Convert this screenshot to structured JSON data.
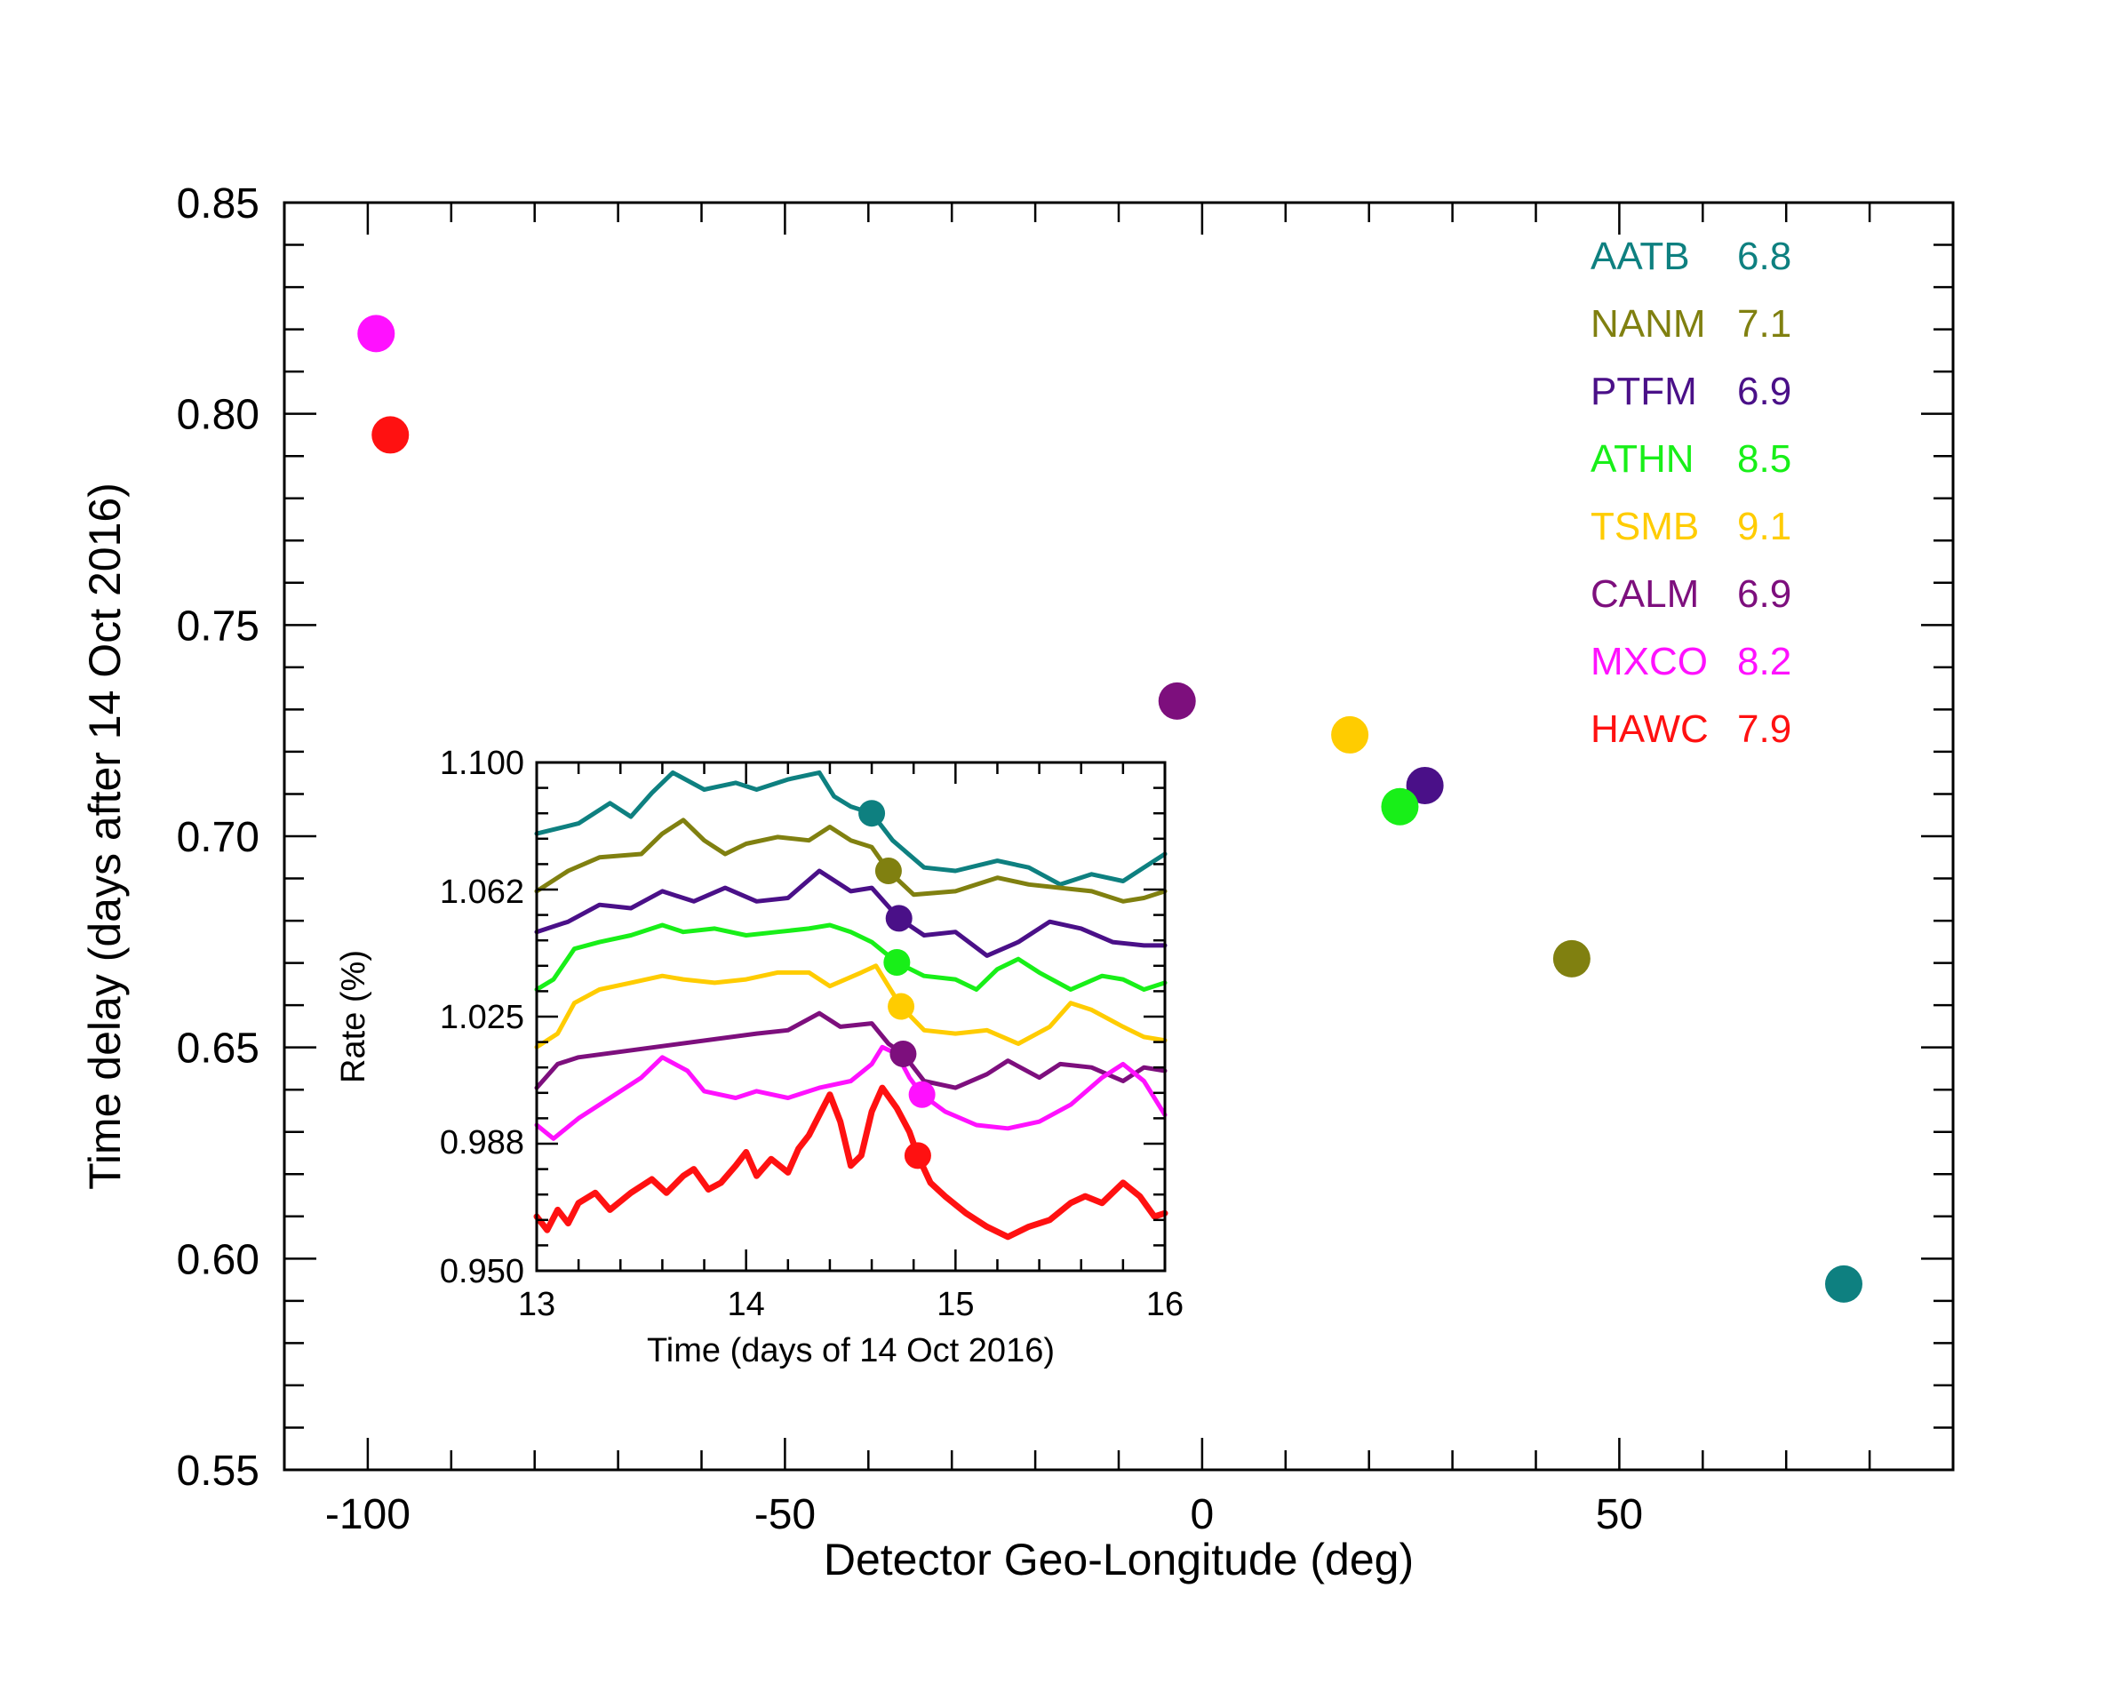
{
  "chart_data": [
    {
      "type": "scatter",
      "title": "",
      "xlabel": "Detector Geo-Longitude (deg)",
      "ylabel": "Time delay (days after 14 Oct 2016)",
      "xlim": [
        -110,
        90
      ],
      "ylim": [
        0.55,
        0.85
      ],
      "xticks": [
        -100,
        -50,
        0,
        50
      ],
      "xtick_labels": [
        "-100",
        "-50",
        "0",
        "50"
      ],
      "yticks": [
        0.55,
        0.6,
        0.65,
        0.7,
        0.75,
        0.8,
        0.85
      ],
      "ytick_labels": [
        "0.55",
        "0.60",
        "0.65",
        "0.70",
        "0.75",
        "0.80",
        "0.85"
      ],
      "grid": false,
      "legend_position": "top-right",
      "series": [
        {
          "name": "AATB",
          "value": "6.8",
          "color": "#0e8080",
          "x": 76.9,
          "y": 0.594
        },
        {
          "name": "NANM",
          "value": "7.1",
          "color": "#808010",
          "x": 44.3,
          "y": 0.671
        },
        {
          "name": "PTFM",
          "value": "6.9",
          "color": "#4a1088",
          "x": 26.7,
          "y": 0.712
        },
        {
          "name": "ATHN",
          "value": "8.5",
          "color": "#18ef18",
          "x": 23.7,
          "y": 0.707
        },
        {
          "name": "TSMB",
          "value": "9.1",
          "color": "#ffcc00",
          "x": 17.7,
          "y": 0.724
        },
        {
          "name": "CALM",
          "value": "6.9",
          "color": "#7d0f7d",
          "x": -3.0,
          "y": 0.732
        },
        {
          "name": "MXCO",
          "value": "8.2",
          "color": "#ff11ff",
          "x": -99.0,
          "y": 0.819
        },
        {
          "name": "HAWC",
          "value": "7.9",
          "color": "#ff1111",
          "x": -97.3,
          "y": 0.795
        }
      ]
    },
    {
      "type": "line",
      "title": "",
      "xlabel": "Time (days of 14 Oct 2016)",
      "ylabel": "Rate (%)",
      "xlim": [
        13,
        16
      ],
      "ylim": [
        0.95,
        1.1
      ],
      "xticks": [
        13,
        14,
        15,
        16
      ],
      "xtick_labels": [
        "13",
        "14",
        "15",
        "16"
      ],
      "yticks": [
        0.95,
        0.988,
        1.025,
        1.062,
        1.1
      ],
      "ytick_labels": [
        "0.950",
        "0.988",
        "1.025",
        "1.062",
        "1.100"
      ],
      "series": [
        {
          "name": "AATB",
          "color": "#0e8080",
          "width": 5,
          "marker": [
            14.6,
            1.085
          ],
          "points": [
            [
              13.0,
              1.079
            ],
            [
              13.2,
              1.082
            ],
            [
              13.35,
              1.088
            ],
            [
              13.45,
              1.084
            ],
            [
              13.55,
              1.091
            ],
            [
              13.65,
              1.097
            ],
            [
              13.8,
              1.092
            ],
            [
              13.95,
              1.094
            ],
            [
              14.05,
              1.092
            ],
            [
              14.2,
              1.095
            ],
            [
              14.35,
              1.097
            ],
            [
              14.42,
              1.09
            ],
            [
              14.5,
              1.087
            ],
            [
              14.6,
              1.085
            ],
            [
              14.7,
              1.077
            ],
            [
              14.85,
              1.069
            ],
            [
              15.0,
              1.068
            ],
            [
              15.2,
              1.071
            ],
            [
              15.35,
              1.069
            ],
            [
              15.5,
              1.064
            ],
            [
              15.65,
              1.067
            ],
            [
              15.8,
              1.065
            ],
            [
              15.9,
              1.069
            ],
            [
              16.0,
              1.073
            ]
          ]
        },
        {
          "name": "NANM",
          "color": "#808010",
          "width": 5,
          "marker": [
            14.68,
            1.068
          ],
          "points": [
            [
              13.0,
              1.062
            ],
            [
              13.15,
              1.068
            ],
            [
              13.3,
              1.072
            ],
            [
              13.5,
              1.073
            ],
            [
              13.6,
              1.079
            ],
            [
              13.7,
              1.083
            ],
            [
              13.8,
              1.077
            ],
            [
              13.9,
              1.073
            ],
            [
              14.0,
              1.076
            ],
            [
              14.15,
              1.078
            ],
            [
              14.3,
              1.077
            ],
            [
              14.4,
              1.081
            ],
            [
              14.5,
              1.077
            ],
            [
              14.6,
              1.075
            ],
            [
              14.68,
              1.068
            ],
            [
              14.8,
              1.061
            ],
            [
              15.0,
              1.062
            ],
            [
              15.2,
              1.066
            ],
            [
              15.35,
              1.064
            ],
            [
              15.5,
              1.063
            ],
            [
              15.65,
              1.062
            ],
            [
              15.8,
              1.059
            ],
            [
              15.9,
              1.06
            ],
            [
              16.0,
              1.062
            ]
          ]
        },
        {
          "name": "PTFM",
          "color": "#4a1088",
          "width": 5,
          "marker": [
            14.73,
            1.054
          ],
          "points": [
            [
              13.0,
              1.05
            ],
            [
              13.15,
              1.053
            ],
            [
              13.3,
              1.058
            ],
            [
              13.45,
              1.057
            ],
            [
              13.6,
              1.062
            ],
            [
              13.75,
              1.059
            ],
            [
              13.9,
              1.063
            ],
            [
              14.05,
              1.059
            ],
            [
              14.2,
              1.06
            ],
            [
              14.35,
              1.068
            ],
            [
              14.5,
              1.062
            ],
            [
              14.6,
              1.063
            ],
            [
              14.73,
              1.054
            ],
            [
              14.85,
              1.049
            ],
            [
              15.0,
              1.05
            ],
            [
              15.15,
              1.043
            ],
            [
              15.3,
              1.047
            ],
            [
              15.45,
              1.053
            ],
            [
              15.6,
              1.051
            ],
            [
              15.75,
              1.047
            ],
            [
              15.9,
              1.046
            ],
            [
              16.0,
              1.046
            ]
          ]
        },
        {
          "name": "ATHN",
          "color": "#18ef18",
          "width": 5,
          "marker": [
            14.72,
            1.041
          ],
          "points": [
            [
              13.0,
              1.033
            ],
            [
              13.08,
              1.036
            ],
            [
              13.18,
              1.045
            ],
            [
              13.3,
              1.047
            ],
            [
              13.45,
              1.049
            ],
            [
              13.6,
              1.052
            ],
            [
              13.7,
              1.05
            ],
            [
              13.85,
              1.051
            ],
            [
              14.0,
              1.049
            ],
            [
              14.15,
              1.05
            ],
            [
              14.3,
              1.051
            ],
            [
              14.4,
              1.052
            ],
            [
              14.5,
              1.05
            ],
            [
              14.6,
              1.047
            ],
            [
              14.72,
              1.041
            ],
            [
              14.85,
              1.037
            ],
            [
              15.0,
              1.036
            ],
            [
              15.1,
              1.033
            ],
            [
              15.2,
              1.039
            ],
            [
              15.3,
              1.042
            ],
            [
              15.4,
              1.038
            ],
            [
              15.55,
              1.033
            ],
            [
              15.7,
              1.037
            ],
            [
              15.8,
              1.036
            ],
            [
              15.9,
              1.033
            ],
            [
              16.0,
              1.035
            ]
          ]
        },
        {
          "name": "TSMB",
          "color": "#ffcc00",
          "width": 5,
          "marker": [
            14.74,
            1.028
          ],
          "points": [
            [
              13.0,
              1.016
            ],
            [
              13.1,
              1.02
            ],
            [
              13.18,
              1.029
            ],
            [
              13.3,
              1.033
            ],
            [
              13.45,
              1.035
            ],
            [
              13.6,
              1.037
            ],
            [
              13.7,
              1.036
            ],
            [
              13.85,
              1.035
            ],
            [
              14.0,
              1.036
            ],
            [
              14.15,
              1.038
            ],
            [
              14.3,
              1.038
            ],
            [
              14.4,
              1.034
            ],
            [
              14.55,
              1.038
            ],
            [
              14.62,
              1.04
            ],
            [
              14.68,
              1.034
            ],
            [
              14.74,
              1.028
            ],
            [
              14.85,
              1.021
            ],
            [
              15.0,
              1.02
            ],
            [
              15.15,
              1.021
            ],
            [
              15.3,
              1.017
            ],
            [
              15.45,
              1.022
            ],
            [
              15.55,
              1.029
            ],
            [
              15.65,
              1.027
            ],
            [
              15.8,
              1.022
            ],
            [
              15.9,
              1.019
            ],
            [
              16.0,
              1.018
            ]
          ]
        },
        {
          "name": "CALM",
          "color": "#7d0f7d",
          "width": 5,
          "marker": [
            14.75,
            1.014
          ],
          "points": [
            [
              13.0,
              1.004
            ],
            [
              13.1,
              1.011
            ],
            [
              13.2,
              1.013
            ],
            [
              14.05,
              1.02
            ],
            [
              14.2,
              1.021
            ],
            [
              14.35,
              1.026
            ],
            [
              14.45,
              1.022
            ],
            [
              14.6,
              1.023
            ],
            [
              14.68,
              1.017
            ],
            [
              14.75,
              1.014
            ],
            [
              14.85,
              1.006
            ],
            [
              15.0,
              1.004
            ],
            [
              15.15,
              1.008
            ],
            [
              15.25,
              1.012
            ],
            [
              15.4,
              1.007
            ],
            [
              15.5,
              1.011
            ],
            [
              15.65,
              1.01
            ],
            [
              15.8,
              1.006
            ],
            [
              15.9,
              1.01
            ],
            [
              16.0,
              1.009
            ]
          ]
        },
        {
          "name": "MXCO",
          "color": "#ff11ff",
          "width": 5,
          "marker": [
            14.84,
            1.002
          ],
          "points": [
            [
              13.0,
              0.993
            ],
            [
              13.08,
              0.989
            ],
            [
              13.2,
              0.995
            ],
            [
              13.35,
              1.001
            ],
            [
              13.5,
              1.007
            ],
            [
              13.6,
              1.013
            ],
            [
              13.72,
              1.009
            ],
            [
              13.8,
              1.003
            ],
            [
              13.95,
              1.001
            ],
            [
              14.05,
              1.003
            ],
            [
              14.2,
              1.001
            ],
            [
              14.35,
              1.004
            ],
            [
              14.5,
              1.006
            ],
            [
              14.6,
              1.011
            ],
            [
              14.65,
              1.016
            ],
            [
              14.72,
              1.014
            ],
            [
              14.78,
              1.007
            ],
            [
              14.84,
              1.002
            ],
            [
              14.95,
              0.997
            ],
            [
              15.1,
              0.993
            ],
            [
              15.25,
              0.992
            ],
            [
              15.4,
              0.994
            ],
            [
              15.55,
              0.999
            ],
            [
              15.7,
              1.007
            ],
            [
              15.8,
              1.011
            ],
            [
              15.9,
              1.006
            ],
            [
              16.0,
              0.996
            ]
          ]
        },
        {
          "name": "HAWC",
          "color": "#ff1111",
          "width": 7,
          "marker": [
            14.82,
            0.984
          ],
          "points": [
            [
              13.0,
              0.966
            ],
            [
              13.05,
              0.962
            ],
            [
              13.1,
              0.968
            ],
            [
              13.15,
              0.964
            ],
            [
              13.2,
              0.97
            ],
            [
              13.28,
              0.973
            ],
            [
              13.35,
              0.968
            ],
            [
              13.45,
              0.973
            ],
            [
              13.55,
              0.977
            ],
            [
              13.62,
              0.973
            ],
            [
              13.7,
              0.978
            ],
            [
              13.75,
              0.98
            ],
            [
              13.82,
              0.974
            ],
            [
              13.88,
              0.976
            ],
            [
              13.95,
              0.981
            ],
            [
              14.0,
              0.985
            ],
            [
              14.05,
              0.978
            ],
            [
              14.12,
              0.983
            ],
            [
              14.2,
              0.979
            ],
            [
              14.25,
              0.986
            ],
            [
              14.3,
              0.99
            ],
            [
              14.35,
              0.996
            ],
            [
              14.4,
              1.002
            ],
            [
              14.45,
              0.994
            ],
            [
              14.5,
              0.981
            ],
            [
              14.55,
              0.984
            ],
            [
              14.6,
              0.997
            ],
            [
              14.65,
              1.004
            ],
            [
              14.72,
              0.998
            ],
            [
              14.78,
              0.991
            ],
            [
              14.82,
              0.984
            ],
            [
              14.88,
              0.976
            ],
            [
              14.95,
              0.972
            ],
            [
              15.05,
              0.967
            ],
            [
              15.15,
              0.963
            ],
            [
              15.25,
              0.96
            ],
            [
              15.35,
              0.963
            ],
            [
              15.45,
              0.965
            ],
            [
              15.55,
              0.97
            ],
            [
              15.62,
              0.972
            ],
            [
              15.7,
              0.97
            ],
            [
              15.8,
              0.976
            ],
            [
              15.88,
              0.972
            ],
            [
              15.95,
              0.966
            ],
            [
              16.0,
              0.967
            ]
          ]
        }
      ]
    }
  ]
}
